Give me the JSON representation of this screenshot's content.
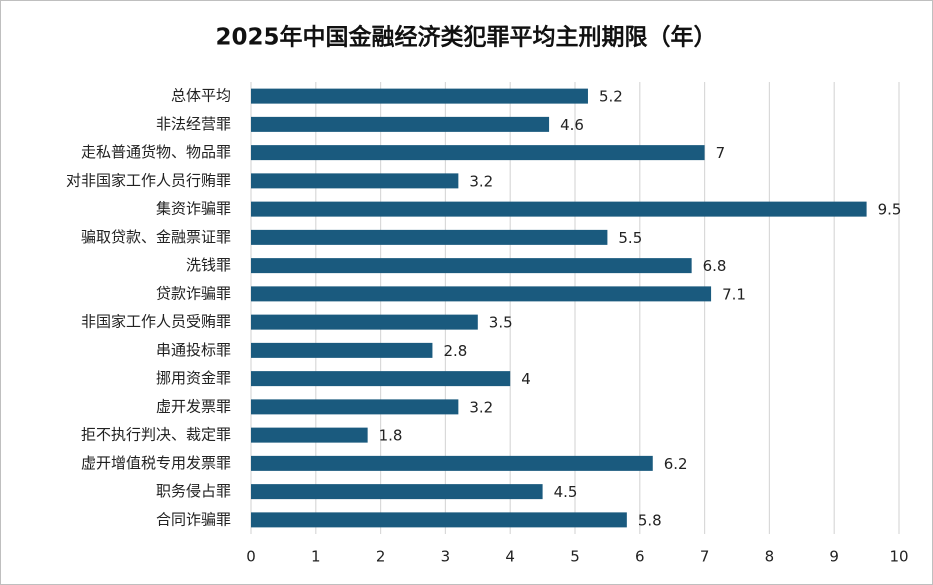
{
  "chart_data": {
    "type": "bar",
    "orientation": "horizontal",
    "title": "2025年中国金融经济类犯罪平均主刑期限（年）",
    "categories": [
      "总体平均",
      "非法经营罪",
      "走私普通货物、物品罪",
      "对非国家工作人员行贿罪",
      "集资诈骗罪",
      "骗取贷款、金融票证罪",
      "洗钱罪",
      "贷款诈骗罪",
      "非国家工作人员受贿罪",
      "串通投标罪",
      "挪用资金罪",
      "虚开发票罪",
      "拒不执行判决、裁定罪",
      "虚开增值税专用发票罪",
      "职务侵占罪",
      "合同诈骗罪"
    ],
    "values": [
      5.2,
      4.6,
      7,
      3.2,
      9.5,
      5.5,
      6.8,
      7.1,
      3.5,
      2.8,
      4,
      3.2,
      1.8,
      6.2,
      4.5,
      5.8
    ],
    "color": "#1a5a7e",
    "xlim": [
      0,
      10
    ],
    "xticks": [
      0,
      1,
      2,
      3,
      4,
      5,
      6,
      7,
      8,
      9,
      10
    ],
    "grid": true
  }
}
